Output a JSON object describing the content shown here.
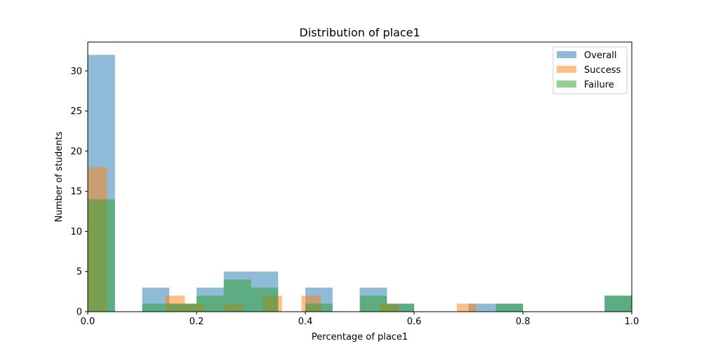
{
  "chart_data": {
    "type": "bar",
    "title": "Distribution of place1",
    "xlabel": "Percentage of place1",
    "ylabel": "Number of students",
    "xlim": [
      0,
      1
    ],
    "ylim": [
      0,
      33.6
    ],
    "xticks": [
      0,
      0.2,
      0.4,
      0.6,
      0.8,
      1.0
    ],
    "xtick_labels": [
      "0.0",
      "0.2",
      "0.4",
      "0.6",
      "0.8",
      "1.0"
    ],
    "yticks": [
      0,
      5,
      10,
      15,
      20,
      25,
      30
    ],
    "ytick_labels": [
      "0",
      "5",
      "10",
      "15",
      "20",
      "25",
      "30"
    ],
    "grid": false,
    "legend_position": "top-right",
    "bar_opacity": 0.5,
    "series": [
      {
        "name": "Overall",
        "color": "#1f77b4",
        "bins": [
          {
            "x0": 0.0,
            "x1": 0.05,
            "value": 32
          },
          {
            "x0": 0.1,
            "x1": 0.15,
            "value": 3
          },
          {
            "x0": 0.15,
            "x1": 0.2,
            "value": 1
          },
          {
            "x0": 0.2,
            "x1": 0.25,
            "value": 3
          },
          {
            "x0": 0.25,
            "x1": 0.3,
            "value": 5
          },
          {
            "x0": 0.3,
            "x1": 0.35,
            "value": 5
          },
          {
            "x0": 0.4,
            "x1": 0.45,
            "value": 3
          },
          {
            "x0": 0.5,
            "x1": 0.55,
            "value": 3
          },
          {
            "x0": 0.55,
            "x1": 0.6,
            "value": 1
          },
          {
            "x0": 0.7,
            "x1": 0.75,
            "value": 1
          },
          {
            "x0": 0.75,
            "x1": 0.8,
            "value": 1
          },
          {
            "x0": 0.95,
            "x1": 1.0,
            "value": 2
          }
        ]
      },
      {
        "name": "Success",
        "color": "#ff7f0e",
        "bins": [
          {
            "x0": 0.0,
            "x1": 0.0357,
            "value": 18
          },
          {
            "x0": 0.1429,
            "x1": 0.1786,
            "value": 2
          },
          {
            "x0": 0.1786,
            "x1": 0.2143,
            "value": 1
          },
          {
            "x0": 0.25,
            "x1": 0.2857,
            "value": 1
          },
          {
            "x0": 0.3214,
            "x1": 0.3571,
            "value": 2
          },
          {
            "x0": 0.3929,
            "x1": 0.4286,
            "value": 2
          },
          {
            "x0": 0.5357,
            "x1": 0.5714,
            "value": 1
          },
          {
            "x0": 0.6786,
            "x1": 0.7143,
            "value": 1
          }
        ]
      },
      {
        "name": "Failure",
        "color": "#2ca02c",
        "bins": [
          {
            "x0": 0.0,
            "x1": 0.05,
            "value": 14
          },
          {
            "x0": 0.1,
            "x1": 0.15,
            "value": 1
          },
          {
            "x0": 0.15,
            "x1": 0.2,
            "value": 1
          },
          {
            "x0": 0.2,
            "x1": 0.25,
            "value": 2
          },
          {
            "x0": 0.25,
            "x1": 0.3,
            "value": 4
          },
          {
            "x0": 0.3,
            "x1": 0.35,
            "value": 3
          },
          {
            "x0": 0.4,
            "x1": 0.45,
            "value": 1
          },
          {
            "x0": 0.5,
            "x1": 0.55,
            "value": 2
          },
          {
            "x0": 0.55,
            "x1": 0.6,
            "value": 1
          },
          {
            "x0": 0.75,
            "x1": 0.8,
            "value": 1
          },
          {
            "x0": 0.95,
            "x1": 1.0,
            "value": 2
          }
        ]
      }
    ]
  }
}
